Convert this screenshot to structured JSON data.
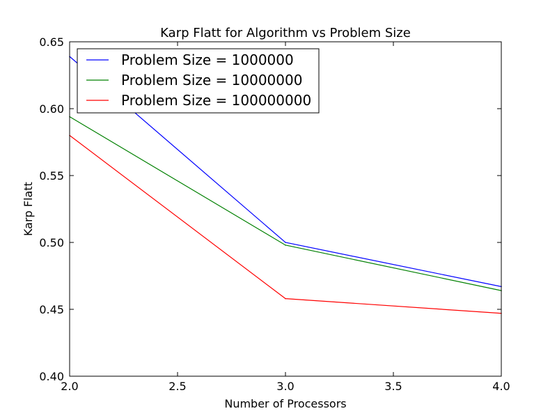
{
  "chart_data": {
    "type": "line",
    "title": "Karp Flatt for Algorithm vs Problem Size",
    "xlabel": "Number of Processors",
    "ylabel": "Karp Flatt",
    "x": [
      2.0,
      3.0,
      4.0
    ],
    "xlim": [
      2.0,
      4.0
    ],
    "ylim": [
      0.4,
      0.65
    ],
    "xticks": [
      "2.0",
      "2.5",
      "3.0",
      "3.5",
      "4.0"
    ],
    "yticks": [
      "0.40",
      "0.45",
      "0.50",
      "0.55",
      "0.60",
      "0.65"
    ],
    "grid": false,
    "legend_position": "top-left",
    "series": [
      {
        "name": "Problem Size = 1000000",
        "color": "#0000ff",
        "values": [
          0.639,
          0.5,
          0.467
        ]
      },
      {
        "name": "Problem Size = 10000000",
        "color": "#008000",
        "values": [
          0.594,
          0.498,
          0.464
        ]
      },
      {
        "name": "Problem Size = 100000000",
        "color": "#ff0000",
        "values": [
          0.58,
          0.458,
          0.447
        ]
      }
    ]
  }
}
